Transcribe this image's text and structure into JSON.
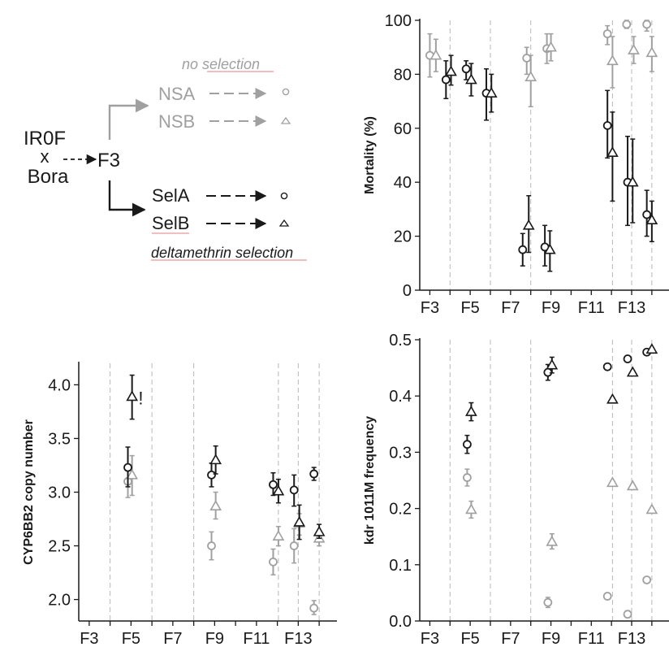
{
  "colors": {
    "selected": "#1a1a1a",
    "unselected": "#a0a0a0",
    "grid": "#b8b8b8",
    "underline": "#e08080"
  },
  "diagram": {
    "parent_a": "IR0F",
    "cross": "x",
    "parent_b": "Bora",
    "f3": "F3",
    "no_selection_label": "no selection",
    "nsa": "NSA",
    "nsb": "NSB",
    "sela": "SelA",
    "selb": "SelB",
    "delta_label": "deltamethrin selection"
  },
  "chart_data": [
    {
      "type": "scatter",
      "ylabel": "Mortality (%)",
      "xlabel": "",
      "xlim": [
        2.5,
        14.85
      ],
      "ylim": [
        0,
        100
      ],
      "yticks": [
        0,
        20,
        40,
        60,
        80,
        100
      ],
      "xticks": [
        "F3",
        "F5",
        "F7",
        "F9",
        "F11",
        "F13"
      ],
      "xtick_values": [
        3,
        5,
        7,
        9,
        11,
        13
      ],
      "vlines": [
        4,
        6,
        8,
        12.05,
        13,
        14
      ],
      "series": [
        {
          "group": "NSA",
          "color": "grey",
          "marker": "circle",
          "points": [
            {
              "x": 3,
              "y": 87,
              "lo": 79,
              "hi": 95
            },
            {
              "x": 7.8,
              "y": 86,
              "lo": 80,
              "hi": 90
            },
            {
              "x": 8.8,
              "y": 89.5,
              "lo": 84,
              "hi": 95
            },
            {
              "x": 11.8,
              "y": 95,
              "lo": 91,
              "hi": 98
            },
            {
              "x": 12.75,
              "y": 98.5,
              "lo": 97,
              "hi": 100
            },
            {
              "x": 13.75,
              "y": 98.5,
              "lo": 96,
              "hi": 100
            }
          ]
        },
        {
          "group": "NSB",
          "color": "grey",
          "marker": "triangle",
          "points": [
            {
              "x": 3.3,
              "y": 87,
              "lo": 81,
              "hi": 93
            },
            {
              "x": 8,
              "y": 79,
              "lo": 68,
              "hi": 87
            },
            {
              "x": 9,
              "y": 90,
              "lo": 85,
              "hi": 95
            },
            {
              "x": 12.05,
              "y": 85,
              "lo": 75,
              "hi": 94
            },
            {
              "x": 13.1,
              "y": 89,
              "lo": 84,
              "hi": 94
            },
            {
              "x": 14,
              "y": 88,
              "lo": 81,
              "hi": 94
            }
          ]
        },
        {
          "group": "SelA",
          "color": "black",
          "marker": "circle",
          "points": [
            {
              "x": 3.8,
              "y": 78,
              "lo": 71,
              "hi": 85
            },
            {
              "x": 4.8,
              "y": 82,
              "lo": 78,
              "hi": 85
            },
            {
              "x": 5.8,
              "y": 73,
              "lo": 63,
              "hi": 82
            },
            {
              "x": 7.6,
              "y": 15,
              "lo": 9,
              "hi": 21
            },
            {
              "x": 8.7,
              "y": 16,
              "lo": 9,
              "hi": 24
            },
            {
              "x": 11.8,
              "y": 61,
              "lo": 49,
              "hi": 74
            },
            {
              "x": 12.8,
              "y": 40,
              "lo": 24,
              "hi": 57
            },
            {
              "x": 13.75,
              "y": 28,
              "lo": 20,
              "hi": 37
            }
          ]
        },
        {
          "group": "SelB",
          "color": "black",
          "marker": "triangle",
          "points": [
            {
              "x": 4.05,
              "y": 81,
              "lo": 76,
              "hi": 87
            },
            {
              "x": 5.05,
              "y": 78,
              "lo": 72,
              "hi": 84
            },
            {
              "x": 6.05,
              "y": 73,
              "lo": 66,
              "hi": 80
            },
            {
              "x": 7.9,
              "y": 24,
              "lo": 14,
              "hi": 35
            },
            {
              "x": 8.95,
              "y": 15,
              "lo": 7,
              "hi": 22
            },
            {
              "x": 12.05,
              "y": 51,
              "lo": 33,
              "hi": 66
            },
            {
              "x": 13.05,
              "y": 40,
              "lo": 25,
              "hi": 56
            },
            {
              "x": 14.0,
              "y": 26,
              "lo": 18,
              "hi": 33
            }
          ]
        }
      ]
    },
    {
      "type": "scatter",
      "ylabel": "CYP6BB2 copy number",
      "xlabel": "",
      "xlim": [
        2.5,
        14.85
      ],
      "ylim": [
        1.8,
        4.2
      ],
      "yticks": [
        2.0,
        2.5,
        3.0,
        3.5,
        4.0
      ],
      "ytick_labels": [
        "2.0",
        "2.5",
        "3.0",
        "3.5",
        "4.0"
      ],
      "xticks": [
        "F3",
        "F5",
        "F7",
        "F9",
        "F11",
        "F13"
      ],
      "xtick_values": [
        3,
        5,
        7,
        9,
        11,
        13
      ],
      "vlines": [
        4,
        6,
        8,
        12.05,
        13,
        14
      ],
      "annotation": {
        "text": "!",
        "x": 5.35,
        "y": 3.88
      },
      "series": [
        {
          "group": "NSA",
          "color": "grey",
          "marker": "circle",
          "points": [
            {
              "x": 4.85,
              "y": 3.1,
              "lo": 2.95,
              "hi": 3.24
            },
            {
              "x": 8.85,
              "y": 2.5,
              "lo": 2.37,
              "hi": 2.63
            },
            {
              "x": 11.8,
              "y": 2.35,
              "lo": 2.23,
              "hi": 2.47
            },
            {
              "x": 12.8,
              "y": 2.5,
              "lo": 2.34,
              "hi": 2.66
            },
            {
              "x": 13.75,
              "y": 1.92,
              "lo": 1.86,
              "hi": 1.99
            }
          ]
        },
        {
          "group": "NSB",
          "color": "grey",
          "marker": "triangle",
          "points": [
            {
              "x": 5.05,
              "y": 3.16,
              "lo": 2.97,
              "hi": 3.34
            },
            {
              "x": 9.05,
              "y": 2.87,
              "lo": 2.75,
              "hi": 3.0
            },
            {
              "x": 12.05,
              "y": 2.59,
              "lo": 2.5,
              "hi": 2.68
            },
            {
              "x": 13.05,
              "y": 2.71,
              "lo": 2.6,
              "hi": 2.8
            },
            {
              "x": 14.0,
              "y": 2.57,
              "lo": 2.5,
              "hi": 2.64
            }
          ]
        },
        {
          "group": "SelA",
          "color": "black",
          "marker": "circle",
          "points": [
            {
              "x": 4.85,
              "y": 3.23,
              "lo": 3.05,
              "hi": 3.42
            },
            {
              "x": 8.85,
              "y": 3.16,
              "lo": 3.05,
              "hi": 3.27
            },
            {
              "x": 11.8,
              "y": 3.07,
              "lo": 2.97,
              "hi": 3.18
            },
            {
              "x": 12.8,
              "y": 3.02,
              "lo": 2.87,
              "hi": 3.16
            },
            {
              "x": 13.75,
              "y": 3.17,
              "lo": 3.11,
              "hi": 3.23
            }
          ]
        },
        {
          "group": "SelB",
          "color": "black",
          "marker": "triangle",
          "points": [
            {
              "x": 5.05,
              "y": 3.89,
              "lo": 3.68,
              "hi": 4.09
            },
            {
              "x": 9.05,
              "y": 3.3,
              "lo": 3.17,
              "hi": 3.43
            },
            {
              "x": 12.05,
              "y": 3.01,
              "lo": 2.9,
              "hi": 3.12
            },
            {
              "x": 13.05,
              "y": 2.72,
              "lo": 2.56,
              "hi": 2.88
            },
            {
              "x": 14.0,
              "y": 2.63,
              "lo": 2.57,
              "hi": 2.7
            }
          ]
        }
      ]
    },
    {
      "type": "scatter",
      "ylabel": "kdr  1011M frequency",
      "xlabel": "",
      "xlim": [
        2.5,
        14.85
      ],
      "ylim": [
        0,
        0.5
      ],
      "yticks": [
        0.0,
        0.1,
        0.2,
        0.3,
        0.4,
        0.5
      ],
      "ytick_labels": [
        "0.0",
        "0.1",
        "0.2",
        "0.3",
        "0.4",
        "0.5"
      ],
      "xticks": [
        "F3",
        "F5",
        "F7",
        "F9",
        "F11",
        "F13"
      ],
      "xtick_values": [
        3,
        5,
        7,
        9,
        11,
        13
      ],
      "vlines": [
        4,
        6,
        8,
        12.05,
        13,
        14
      ],
      "series": [
        {
          "group": "NSA",
          "color": "grey",
          "marker": "circle",
          "points": [
            {
              "x": 4.85,
              "y": 0.255,
              "lo": 0.24,
              "hi": 0.27
            },
            {
              "x": 8.85,
              "y": 0.033,
              "lo": 0.024,
              "hi": 0.042
            },
            {
              "x": 11.8,
              "y": 0.044,
              "lo": 0.04,
              "hi": 0.048
            },
            {
              "x": 12.8,
              "y": 0.012,
              "lo": 0.006,
              "hi": 0.018
            },
            {
              "x": 13.75,
              "y": 0.073,
              "lo": 0.069,
              "hi": 0.077
            }
          ]
        },
        {
          "group": "NSB",
          "color": "grey",
          "marker": "triangle",
          "points": [
            {
              "x": 5.05,
              "y": 0.198,
              "lo": 0.183,
              "hi": 0.213
            },
            {
              "x": 9.05,
              "y": 0.141,
              "lo": 0.128,
              "hi": 0.155
            },
            {
              "x": 12.05,
              "y": 0.246,
              "lo": 0.243,
              "hi": 0.249
            },
            {
              "x": 13.05,
              "y": 0.24,
              "lo": 0.237,
              "hi": 0.243
            },
            {
              "x": 14.0,
              "y": 0.198,
              "lo": 0.195,
              "hi": 0.201
            }
          ]
        },
        {
          "group": "SelA",
          "color": "black",
          "marker": "circle",
          "points": [
            {
              "x": 4.85,
              "y": 0.314,
              "lo": 0.298,
              "hi": 0.33
            },
            {
              "x": 8.85,
              "y": 0.442,
              "lo": 0.428,
              "hi": 0.456
            },
            {
              "x": 11.8,
              "y": 0.452,
              "lo": 0.449,
              "hi": 0.455
            },
            {
              "x": 12.8,
              "y": 0.466,
              "lo": 0.463,
              "hi": 0.469
            },
            {
              "x": 13.75,
              "y": 0.478,
              "lo": 0.475,
              "hi": 0.481
            }
          ]
        },
        {
          "group": "SelB",
          "color": "black",
          "marker": "triangle",
          "points": [
            {
              "x": 5.05,
              "y": 0.372,
              "lo": 0.356,
              "hi": 0.388
            },
            {
              "x": 9.05,
              "y": 0.455,
              "lo": 0.441,
              "hi": 0.469
            },
            {
              "x": 12.05,
              "y": 0.394,
              "lo": 0.391,
              "hi": 0.397
            },
            {
              "x": 13.05,
              "y": 0.442,
              "lo": 0.439,
              "hi": 0.445
            },
            {
              "x": 14.0,
              "y": 0.483,
              "lo": 0.48,
              "hi": 0.486
            }
          ]
        }
      ]
    }
  ]
}
